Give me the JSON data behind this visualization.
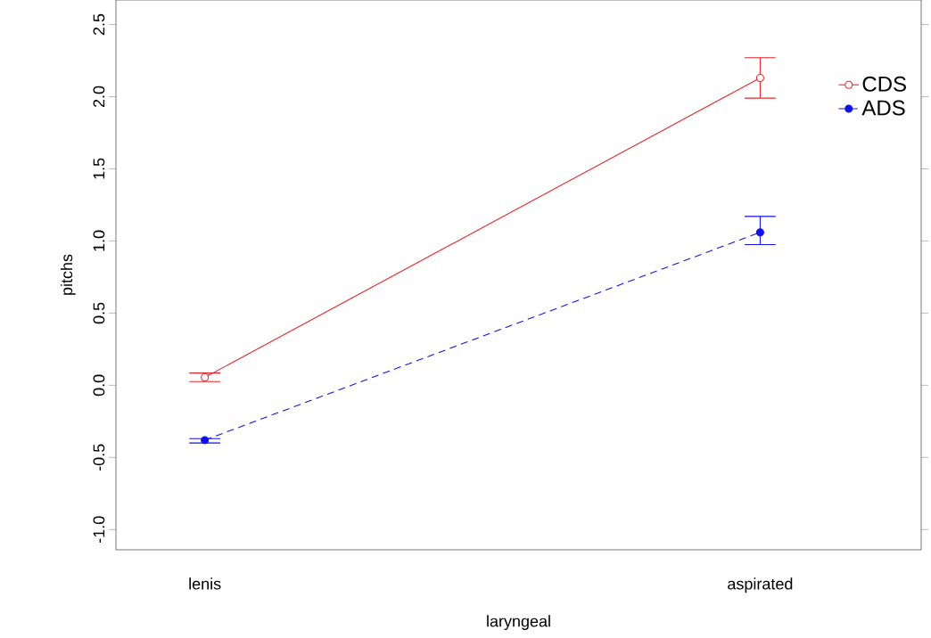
{
  "chart_data": {
    "type": "line",
    "xlabel": "laryngeal",
    "ylabel": "pitchs",
    "categories": [
      "lenis",
      "aspirated"
    ],
    "series": [
      {
        "name": "CDS",
        "color": "#e8242a",
        "values": [
          0.055,
          2.13
        ],
        "errors": [
          [
            0.025,
            0.085
          ],
          [
            1.99,
            2.27
          ]
        ],
        "line_style": "solid",
        "marker": "circle"
      },
      {
        "name": "ADS",
        "color": "#1010f0",
        "values": [
          -0.38,
          1.06
        ],
        "errors": [
          [
            -0.4,
            -0.37
          ],
          [
            0.975,
            1.17
          ]
        ],
        "line_style": "dashed",
        "marker": "circle"
      }
    ],
    "ylim": [
      -1.14,
      2.67
    ],
    "yticks": [
      {
        "value": -1.0,
        "label": "-1.0"
      },
      {
        "value": -0.5,
        "label": "-0.5"
      },
      {
        "value": 0.0,
        "label": "0.0"
      },
      {
        "value": 0.5,
        "label": "0.5"
      },
      {
        "value": 1.0,
        "label": "1.0"
      },
      {
        "value": 1.5,
        "label": "1.5"
      },
      {
        "value": 2.0,
        "label": "2.0"
      },
      {
        "value": 2.5,
        "label": "2.5"
      }
    ],
    "grid": false,
    "legend": "top right"
  }
}
